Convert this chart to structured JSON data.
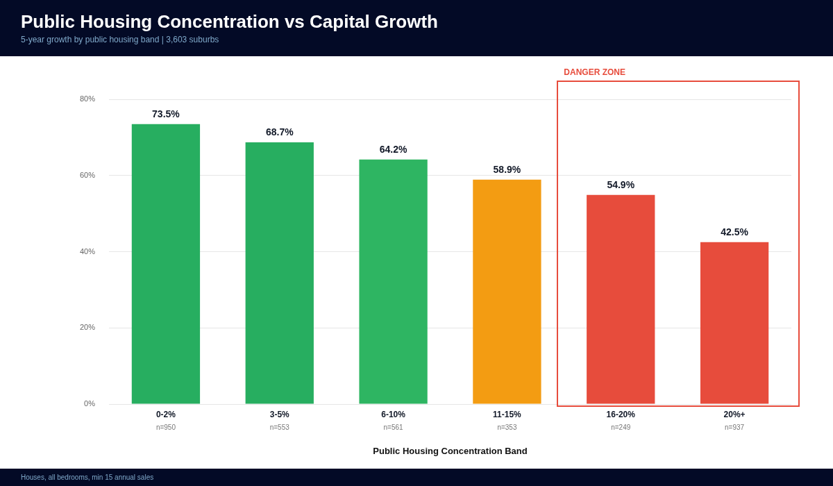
{
  "chart_data": {
    "type": "bar",
    "title": "Public Housing Concentration vs Capital Growth",
    "subtitle": "5-year growth by public housing band | 3,603 suburbs",
    "xlabel": "Public Housing Concentration Band",
    "categories": [
      "0-2%\nn=950",
      "3-5%\nn=553",
      "6-10%\nn=561",
      "11-15%\nn=353",
      "16-20%\nn=249",
      "20%+\nn=937"
    ],
    "values": [
      73.5,
      68.7,
      64.2,
      58.9,
      54.9,
      42.5
    ],
    "colors": [
      "#27ae60",
      "#27ae60",
      "#2eb562",
      "#f39c12",
      "#e74c3c",
      "#e74c3c"
    ],
    "value_labels": [
      "73.5%",
      "68.7%",
      "64.2%",
      "58.9%",
      "54.9%",
      "42.5%"
    ],
    "ylim": [
      0,
      80
    ],
    "yticks": [
      {
        "value": 0,
        "label": "0%"
      },
      {
        "value": 20,
        "label": "20%"
      },
      {
        "value": 40,
        "label": "40%"
      },
      {
        "value": 60,
        "label": "60%"
      },
      {
        "value": 80,
        "label": "80%"
      }
    ],
    "grid": "y",
    "annotations": [
      "DANGER ZONE",
      "Houses, all bedrooms, min 15 annual sales"
    ]
  }
}
